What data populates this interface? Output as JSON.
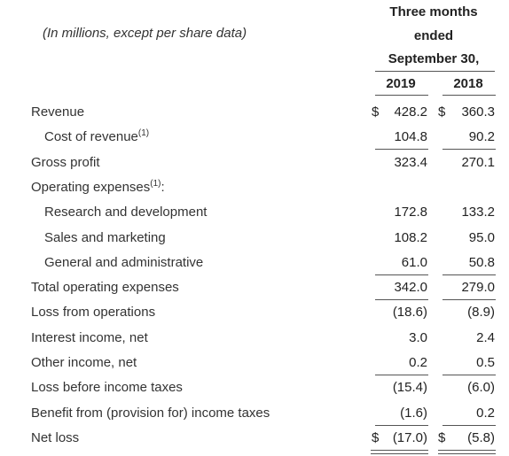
{
  "header": {
    "note": "(In millions, except per share data)",
    "period": [
      "Three months",
      "ended",
      "September 30,"
    ],
    "years": [
      "2019",
      "2018"
    ]
  },
  "table": {
    "rows": [
      {
        "label": "Revenue",
        "currency": [
          "$",
          "$"
        ],
        "values": [
          "428.2",
          "360.3"
        ]
      },
      {
        "label": "Cost of revenue",
        "sup": "(1)",
        "values": [
          "104.8",
          "90.2"
        ]
      },
      {
        "label": "Gross profit",
        "values": [
          "323.4",
          "270.1"
        ]
      },
      {
        "label": "Operating expenses",
        "sup": "(1)",
        "suffix": ":"
      },
      {
        "label": "Research and development",
        "values": [
          "172.8",
          "133.2"
        ]
      },
      {
        "label": "Sales and marketing",
        "values": [
          "108.2",
          "95.0"
        ]
      },
      {
        "label": "General and administrative",
        "values": [
          "61.0",
          "50.8"
        ]
      },
      {
        "label": "Total operating expenses",
        "values": [
          "342.0",
          "279.0"
        ]
      },
      {
        "label": "Loss from operations",
        "values": [
          "(18.6)",
          "(8.9)"
        ]
      },
      {
        "label": "Interest income, net",
        "values": [
          "3.0",
          "2.4"
        ]
      },
      {
        "label": "Other income, net",
        "values": [
          "0.2",
          "0.5"
        ]
      },
      {
        "label": "Loss before income taxes",
        "values": [
          "(15.4)",
          "(6.0)"
        ]
      },
      {
        "label": "Benefit from (provision for) income taxes",
        "values": [
          "(1.6)",
          "0.2"
        ]
      },
      {
        "label": "Net loss",
        "currency": [
          "$",
          "$"
        ],
        "values": [
          "(17.0)",
          "(5.8)"
        ]
      }
    ]
  }
}
